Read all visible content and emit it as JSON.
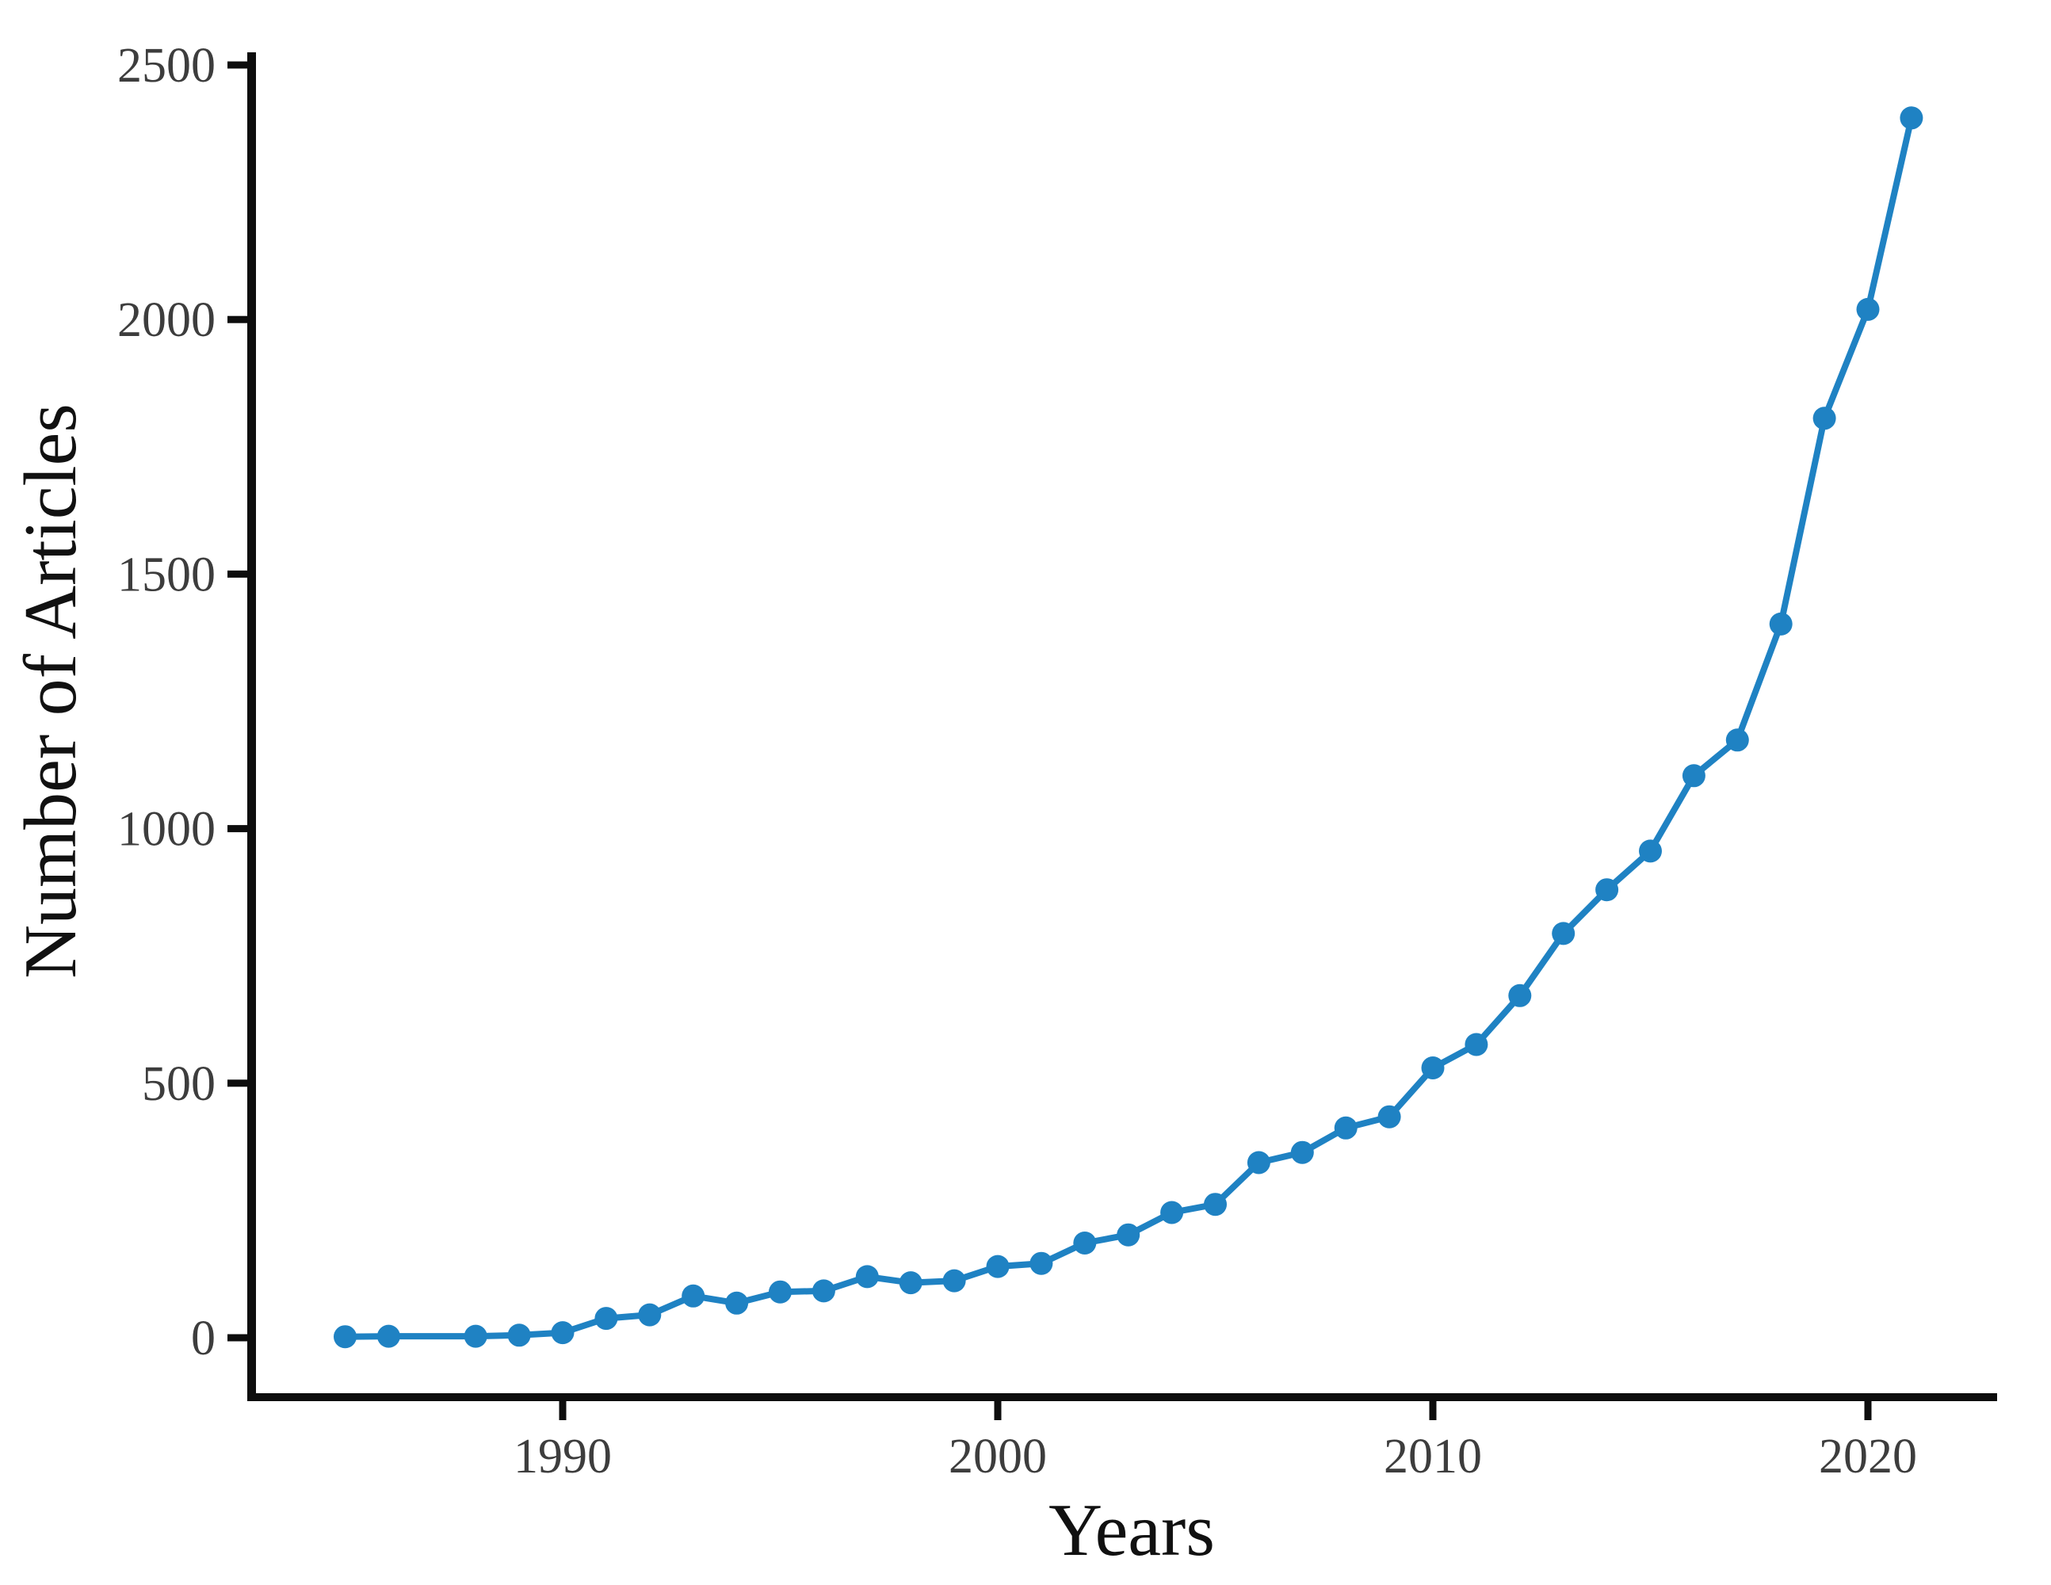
{
  "chart_data": {
    "type": "line",
    "title": "",
    "xlabel": "Years",
    "ylabel": "Number of Articles",
    "x": [
      1985,
      1986,
      1988,
      1989,
      1990,
      1991,
      1992,
      1993,
      1994,
      1995,
      1996,
      1997,
      1998,
      1999,
      2000,
      2001,
      2002,
      2003,
      2004,
      2005,
      2006,
      2007,
      2008,
      2009,
      2010,
      2011,
      2012,
      2013,
      2014,
      2015,
      2016,
      2017,
      2018,
      2019,
      2020,
      2021
    ],
    "values": [
      2,
      3,
      3,
      5,
      10,
      38,
      45,
      82,
      68,
      90,
      92,
      120,
      108,
      112,
      140,
      146,
      186,
      202,
      246,
      262,
      344,
      364,
      412,
      434,
      530,
      576,
      672,
      794,
      880,
      956,
      1104,
      1174,
      1402,
      1806,
      2020,
      2396
    ],
    "series_name": "Number of Articles",
    "note_missing_x": [
      1987
    ],
    "x_ticks": [
      1990,
      2000,
      2010,
      2020
    ],
    "y_ticks": [
      0,
      500,
      1000,
      1500,
      2000,
      2500
    ],
    "xlim": [
      1983.5,
      2022.5
    ],
    "ylim": [
      0,
      2500
    ],
    "grid": "off",
    "legend": "none",
    "marker": "circle",
    "colors": {
      "series": "#1f82c3",
      "axis": "#0d0d0d",
      "tick_label": "#3d3d3d",
      "axis_label": "#111111"
    }
  }
}
